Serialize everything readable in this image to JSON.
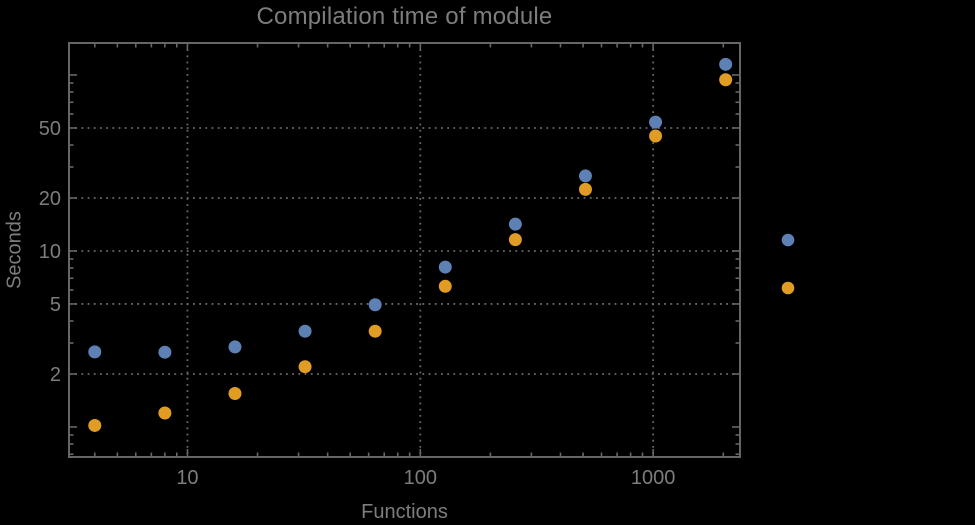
{
  "chart_data": {
    "type": "scatter",
    "title": "Compilation time of module",
    "xlabel": "Functions",
    "ylabel": "Seconds",
    "x_axis": {
      "scale": "log",
      "range": [
        3.1,
        2360
      ],
      "tick_values": [
        10,
        100,
        1000
      ],
      "tick_labels": [
        "10",
        "100",
        "1000"
      ],
      "gridlines": [
        10,
        100,
        1000
      ]
    },
    "y_axis": {
      "scale": "log",
      "range": [
        0.675,
        152
      ],
      "tick_values": [
        2,
        5,
        10,
        20,
        50
      ],
      "tick_labels": [
        "2",
        "5",
        "10",
        "20",
        "50"
      ],
      "unlabeled_major_ticks": [
        1,
        100
      ],
      "gridlines": [
        2,
        5,
        10,
        20,
        50
      ]
    },
    "grid_style": "dotted",
    "x": [
      4,
      8,
      16,
      32,
      64,
      128,
      256,
      512,
      1024,
      2048
    ],
    "series": [
      {
        "label": "",
        "color": "#5E81B5",
        "values": [
          2.67,
          2.66,
          2.85,
          3.5,
          4.95,
          8.1,
          14.2,
          26.7,
          54,
          115
        ]
      },
      {
        "label": "",
        "color": "#E19C24",
        "values": [
          1.02,
          1.2,
          1.55,
          2.2,
          3.5,
          6.3,
          11.6,
          22.4,
          45,
          94
        ]
      }
    ],
    "legend": {
      "position": "right-outside",
      "labels_visible": false,
      "marker_colors": [
        "#5E81B5",
        "#E19C24"
      ]
    }
  },
  "colors": {
    "background": "#000000",
    "frame": "#666666",
    "grid": "#696969",
    "text": "#7d7d7d"
  }
}
